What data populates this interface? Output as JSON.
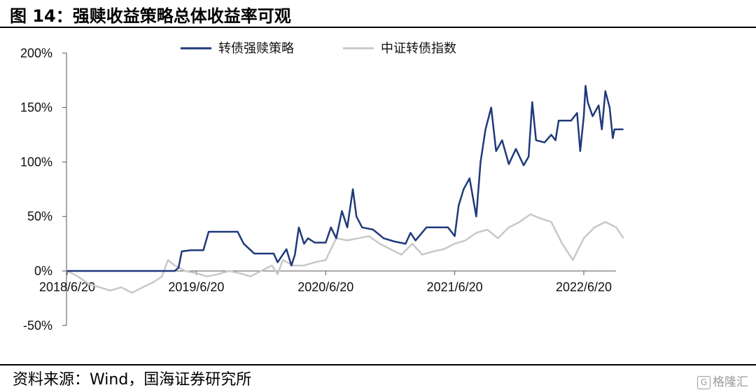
{
  "title": "图 14：强赎收益策略总体收益率可观",
  "source": "资料来源：Wind，国海证券研究所",
  "watermark": "格隆汇",
  "chart_data": {
    "type": "line",
    "title": "",
    "xlabel": "",
    "ylabel": "",
    "ylim": [
      -50,
      200
    ],
    "y_ticks": [
      -50,
      0,
      50,
      100,
      150,
      200
    ],
    "y_tick_labels": [
      "-50%",
      "0%",
      "50%",
      "100%",
      "150%",
      "200%"
    ],
    "x_ticks": [
      "2018/6/20",
      "2019/6/20",
      "2020/6/20",
      "2021/6/20",
      "2022/6/20"
    ],
    "x_tick_dates": [
      "2018-06-20",
      "2019-06-20",
      "2020-06-20",
      "2021-06-20",
      "2022-06-20"
    ],
    "legend_position": "top",
    "grid": false,
    "series": [
      {
        "name": "转债强赎策略",
        "color": "#1f3a7a",
        "points": [
          [
            "2018-06-20",
            0
          ],
          [
            "2019-03-20",
            0
          ],
          [
            "2019-04-20",
            0
          ],
          [
            "2019-05-01",
            3
          ],
          [
            "2019-05-10",
            18
          ],
          [
            "2019-06-05",
            19
          ],
          [
            "2019-07-10",
            19
          ],
          [
            "2019-07-25",
            36
          ],
          [
            "2019-09-01",
            36
          ],
          [
            "2019-10-15",
            36
          ],
          [
            "2019-11-01",
            25
          ],
          [
            "2019-12-01",
            16
          ],
          [
            "2020-01-25",
            16
          ],
          [
            "2020-02-05",
            8
          ],
          [
            "2020-03-01",
            20
          ],
          [
            "2020-03-15",
            5
          ],
          [
            "2020-03-25",
            15
          ],
          [
            "2020-04-05",
            40
          ],
          [
            "2020-04-20",
            25
          ],
          [
            "2020-05-01",
            30
          ],
          [
            "2020-05-20",
            26
          ],
          [
            "2020-06-20",
            26
          ],
          [
            "2020-07-05",
            40
          ],
          [
            "2020-07-20",
            30
          ],
          [
            "2020-08-05",
            55
          ],
          [
            "2020-08-20",
            40
          ],
          [
            "2020-09-05",
            75
          ],
          [
            "2020-09-15",
            50
          ],
          [
            "2020-10-01",
            40
          ],
          [
            "2020-11-01",
            38
          ],
          [
            "2020-12-01",
            30
          ],
          [
            "2021-01-01",
            27
          ],
          [
            "2021-02-01",
            25
          ],
          [
            "2021-02-15",
            35
          ],
          [
            "2021-03-01",
            28
          ],
          [
            "2021-04-01",
            40
          ],
          [
            "2021-06-01",
            40
          ],
          [
            "2021-06-20",
            32
          ],
          [
            "2021-07-01",
            60
          ],
          [
            "2021-07-15",
            75
          ],
          [
            "2021-08-01",
            85
          ],
          [
            "2021-08-20",
            50
          ],
          [
            "2021-09-01",
            100
          ],
          [
            "2021-09-15",
            130
          ],
          [
            "2021-10-01",
            150
          ],
          [
            "2021-10-15",
            110
          ],
          [
            "2021-11-01",
            120
          ],
          [
            "2021-11-20",
            98
          ],
          [
            "2021-12-10",
            112
          ],
          [
            "2022-01-01",
            97
          ],
          [
            "2022-01-15",
            105
          ],
          [
            "2022-01-25",
            155
          ],
          [
            "2022-02-05",
            120
          ],
          [
            "2022-03-01",
            118
          ],
          [
            "2022-03-20",
            125
          ],
          [
            "2022-04-01",
            120
          ],
          [
            "2022-04-10",
            138
          ],
          [
            "2022-05-15",
            138
          ],
          [
            "2022-06-01",
            145
          ],
          [
            "2022-06-10",
            110
          ],
          [
            "2022-06-20",
            142
          ],
          [
            "2022-06-25",
            170
          ],
          [
            "2022-07-01",
            155
          ],
          [
            "2022-07-15",
            142
          ],
          [
            "2022-08-01",
            152
          ],
          [
            "2022-08-10",
            130
          ],
          [
            "2022-08-20",
            165
          ],
          [
            "2022-09-01",
            150
          ],
          [
            "2022-09-10",
            122
          ],
          [
            "2022-09-15",
            130
          ],
          [
            "2022-10-10",
            130
          ]
        ]
      },
      {
        "name": "中证转债指数",
        "color": "#c8c8c8",
        "points": [
          [
            "2018-06-20",
            0
          ],
          [
            "2018-07-20",
            -5
          ],
          [
            "2018-08-20",
            -12
          ],
          [
            "2018-09-20",
            -15
          ],
          [
            "2018-10-20",
            -18
          ],
          [
            "2018-11-20",
            -15
          ],
          [
            "2018-12-20",
            -20
          ],
          [
            "2019-01-20",
            -15
          ],
          [
            "2019-02-20",
            -10
          ],
          [
            "2019-03-15",
            -5
          ],
          [
            "2019-04-01",
            10
          ],
          [
            "2019-04-20",
            5
          ],
          [
            "2019-05-20",
            0
          ],
          [
            "2019-06-20",
            -2
          ],
          [
            "2019-07-20",
            -5
          ],
          [
            "2019-08-20",
            -3
          ],
          [
            "2019-09-20",
            0
          ],
          [
            "2019-10-20",
            -2
          ],
          [
            "2019-11-20",
            -5
          ],
          [
            "2019-12-20",
            0
          ],
          [
            "2020-01-20",
            5
          ],
          [
            "2020-02-05",
            -3
          ],
          [
            "2020-02-20",
            10
          ],
          [
            "2020-03-20",
            5
          ],
          [
            "2020-04-20",
            5
          ],
          [
            "2020-05-20",
            8
          ],
          [
            "2020-06-20",
            10
          ],
          [
            "2020-07-20",
            30
          ],
          [
            "2020-08-20",
            28
          ],
          [
            "2020-09-20",
            30
          ],
          [
            "2020-10-20",
            32
          ],
          [
            "2020-11-20",
            25
          ],
          [
            "2020-12-20",
            20
          ],
          [
            "2021-01-20",
            15
          ],
          [
            "2021-02-20",
            25
          ],
          [
            "2021-03-20",
            15
          ],
          [
            "2021-04-20",
            18
          ],
          [
            "2021-05-20",
            20
          ],
          [
            "2021-06-20",
            25
          ],
          [
            "2021-07-20",
            28
          ],
          [
            "2021-08-20",
            35
          ],
          [
            "2021-09-20",
            38
          ],
          [
            "2021-10-20",
            30
          ],
          [
            "2021-11-20",
            40
          ],
          [
            "2021-12-20",
            45
          ],
          [
            "2022-01-20",
            52
          ],
          [
            "2022-02-20",
            48
          ],
          [
            "2022-03-20",
            45
          ],
          [
            "2022-04-20",
            25
          ],
          [
            "2022-05-20",
            10
          ],
          [
            "2022-06-20",
            30
          ],
          [
            "2022-07-20",
            40
          ],
          [
            "2022-08-20",
            45
          ],
          [
            "2022-09-20",
            40
          ],
          [
            "2022-10-10",
            30
          ]
        ]
      }
    ]
  }
}
